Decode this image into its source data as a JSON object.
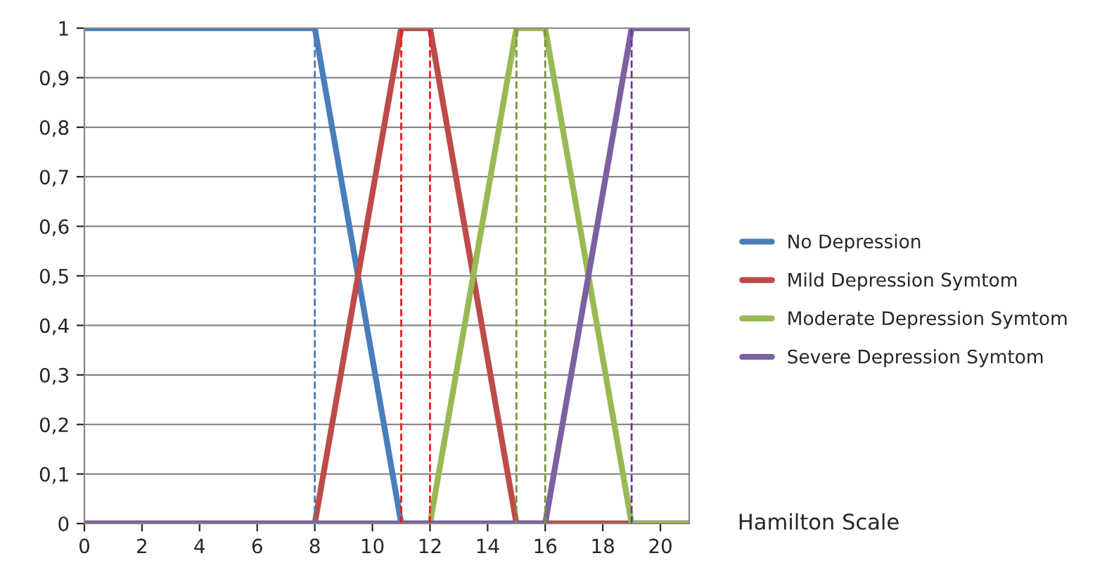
{
  "chart_data": {
    "type": "line",
    "xlabel": "Hamilton Scale",
    "series": [
      {
        "name": "No Depression",
        "color": "#4a7ebb",
        "x": [
          0,
          8,
          11,
          21
        ],
        "values": [
          1,
          1,
          0,
          0
        ]
      },
      {
        "name": "Mild Depression Symtom",
        "color": "#be4b48",
        "x": [
          0,
          8,
          11,
          12,
          15,
          21
        ],
        "values": [
          0,
          0,
          1,
          1,
          0,
          0
        ]
      },
      {
        "name": "Moderate Depression Symtom",
        "color": "#98b954",
        "x": [
          0,
          12,
          15,
          16,
          19,
          21
        ],
        "values": [
          0,
          0,
          1,
          1,
          0,
          0
        ]
      },
      {
        "name": "Severe Depression Symtom",
        "color": "#7d60a0",
        "x": [
          0,
          16,
          19,
          21
        ],
        "values": [
          0,
          0,
          1,
          1
        ]
      }
    ],
    "xlim": [
      0,
      21
    ],
    "xticks": [
      0,
      2,
      4,
      6,
      8,
      10,
      12,
      14,
      16,
      18,
      20
    ],
    "ylim": [
      0,
      1
    ],
    "yticks": [
      0,
      {
        "value": 0.1,
        "label": "0,1"
      },
      {
        "value": 0.2,
        "label": "0,2"
      },
      {
        "value": 0.3,
        "label": "0,3"
      },
      {
        "value": 0.4,
        "label": "0,4"
      },
      {
        "value": 0.5,
        "label": "0,5"
      },
      {
        "value": 0.6,
        "label": "0,6"
      },
      {
        "value": 0.7,
        "label": "0,7"
      },
      {
        "value": 0.8,
        "label": "0,8"
      },
      {
        "value": 0.9,
        "label": "0,9"
      },
      1
    ],
    "ref_lines": [
      {
        "axis": "x",
        "value": 8,
        "color": "#4a7ebb",
        "line_style": "dashed"
      },
      {
        "axis": "x",
        "value": 11,
        "color": "#e02020",
        "line_style": "dashed"
      },
      {
        "axis": "x",
        "value": 12,
        "color": "#e02020",
        "line_style": "dashed"
      },
      {
        "axis": "x",
        "value": 15,
        "color": "#77933c",
        "line_style": "dashed"
      },
      {
        "axis": "x",
        "value": 16,
        "color": "#77933c",
        "line_style": "dashed"
      },
      {
        "axis": "x",
        "value": 19,
        "color": "#7030a0",
        "line_style": "dashed"
      }
    ],
    "grid": "y",
    "legend": "right",
    "marker": "none",
    "line_style": "solid"
  }
}
